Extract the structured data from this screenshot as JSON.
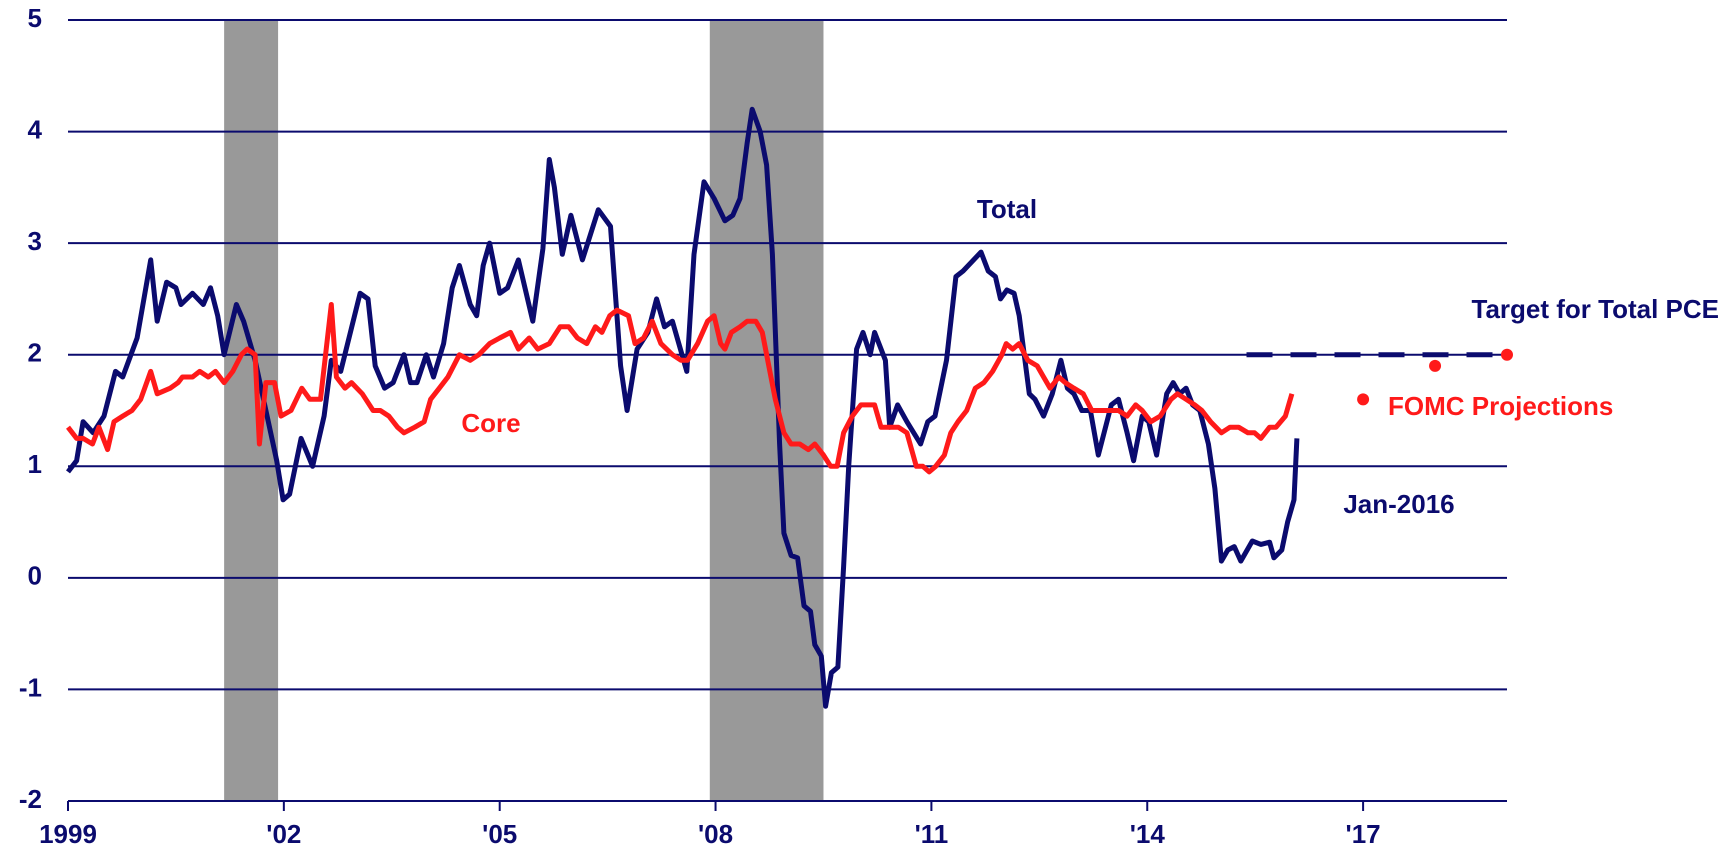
{
  "chart_data": {
    "type": "line",
    "xlim": [
      1999,
      2019
    ],
    "xticks": [
      1999,
      {
        "value": 2002,
        "label": "'02"
      },
      {
        "value": 2005,
        "label": "'05"
      },
      {
        "value": 2008,
        "label": "'08"
      },
      {
        "value": 2011,
        "label": "'11"
      },
      {
        "value": 2014,
        "label": "'14"
      },
      {
        "value": 2017,
        "label": "'17"
      }
    ],
    "ylim": [
      -2,
      5
    ],
    "yticks": [
      -2,
      -1,
      0,
      1,
      2,
      3,
      4,
      5
    ],
    "grid": true,
    "grid_color": "#0b0b6e",
    "recessions": [
      [
        2001.17,
        2001.92
      ],
      [
        2007.92,
        2009.5
      ]
    ],
    "recession_color": "#999999",
    "annotation": "Jan-2016",
    "series": [
      {
        "name": "Total",
        "color": "#0b0b6e",
        "style": "line",
        "x": [
          1999.0,
          1999.12,
          1999.21,
          1999.35,
          1999.5,
          1999.66,
          1999.76,
          1999.96,
          2000.15,
          2000.24,
          2000.37,
          2000.5,
          2000.57,
          2000.73,
          2000.88,
          2000.98,
          2001.08,
          2001.17,
          2001.34,
          2001.44,
          2001.6,
          2001.75,
          2001.9,
          2001.99,
          2002.08,
          2002.24,
          2002.4,
          2002.56,
          2002.66,
          2002.79,
          2003.06,
          2003.17,
          2003.27,
          2003.4,
          2003.52,
          2003.67,
          2003.76,
          2003.85,
          2003.98,
          2004.08,
          2004.22,
          2004.34,
          2004.44,
          2004.59,
          2004.68,
          2004.77,
          2004.86,
          2005.0,
          2005.11,
          2005.26,
          2005.46,
          2005.6,
          2005.69,
          2005.76,
          2005.87,
          2005.99,
          2006.15,
          2006.37,
          2006.54,
          2006.68,
          2006.77,
          2006.91,
          2007.06,
          2007.18,
          2007.29,
          2007.4,
          2007.6,
          2007.7,
          2007.84,
          2007.98,
          2008.13,
          2008.24,
          2008.34,
          2008.44,
          2008.51,
          2008.62,
          2008.71,
          2008.79,
          2008.89,
          2008.95,
          2009.05,
          2009.14,
          2009.23,
          2009.32,
          2009.38,
          2009.47,
          2009.53,
          2009.61,
          2009.7,
          2009.78,
          2009.85,
          2009.96,
          2010.05,
          2010.15,
          2010.21,
          2010.36,
          2010.42,
          2010.53,
          2010.66,
          2010.85,
          2010.95,
          2011.05,
          2011.21,
          2011.34,
          2011.44,
          2011.69,
          2011.79,
          2011.89,
          2011.96,
          2012.05,
          2012.15,
          2012.22,
          2012.36,
          2012.44,
          2012.56,
          2012.68,
          2012.8,
          2012.89,
          2012.98,
          2013.09,
          2013.21,
          2013.32,
          2013.5,
          2013.6,
          2013.72,
          2013.81,
          2013.93,
          2014.02,
          2014.13,
          2014.27,
          2014.36,
          2014.45,
          2014.54,
          2014.63,
          2014.73,
          2014.85,
          2014.94,
          2015.03,
          2015.12,
          2015.21,
          2015.3,
          2015.46,
          2015.58,
          2015.7,
          2015.76,
          2015.87,
          2015.95,
          2016.04,
          2016.08
        ],
        "values": [
          0.95,
          1.05,
          1.4,
          1.3,
          1.45,
          1.85,
          1.8,
          2.15,
          2.85,
          2.3,
          2.65,
          2.6,
          2.45,
          2.55,
          2.45,
          2.6,
          2.35,
          2.0,
          2.45,
          2.3,
          1.95,
          1.5,
          1.05,
          0.7,
          0.75,
          1.25,
          1.0,
          1.45,
          1.95,
          1.85,
          2.55,
          2.5,
          1.9,
          1.7,
          1.75,
          2.0,
          1.75,
          1.75,
          2.0,
          1.8,
          2.1,
          2.6,
          2.8,
          2.45,
          2.35,
          2.8,
          3.0,
          2.55,
          2.6,
          2.85,
          2.3,
          2.95,
          3.75,
          3.5,
          2.9,
          3.25,
          2.85,
          3.3,
          3.15,
          1.9,
          1.5,
          2.05,
          2.2,
          2.5,
          2.25,
          2.3,
          1.85,
          2.9,
          3.55,
          3.4,
          3.2,
          3.25,
          3.4,
          3.9,
          4.2,
          4.0,
          3.7,
          2.9,
          1.2,
          0.4,
          0.2,
          0.18,
          -0.25,
          -0.3,
          -0.6,
          -0.7,
          -1.15,
          -0.85,
          -0.8,
          0.1,
          1.0,
          2.05,
          2.2,
          2.0,
          2.2,
          1.95,
          1.35,
          1.55,
          1.4,
          1.2,
          1.4,
          1.45,
          1.95,
          2.7,
          2.75,
          2.92,
          2.75,
          2.7,
          2.5,
          2.58,
          2.55,
          2.35,
          1.65,
          1.6,
          1.45,
          1.65,
          1.95,
          1.7,
          1.65,
          1.5,
          1.5,
          1.1,
          1.55,
          1.6,
          1.3,
          1.05,
          1.45,
          1.4,
          1.1,
          1.65,
          1.75,
          1.65,
          1.7,
          1.55,
          1.5,
          1.2,
          0.8,
          0.15,
          0.25,
          0.28,
          0.15,
          0.33,
          0.3,
          0.32,
          0.18,
          0.25,
          0.5,
          0.7,
          1.25
        ]
      },
      {
        "name": "Core",
        "color": "#ff1a1a",
        "style": "line",
        "x": [
          1999.0,
          1999.12,
          1999.21,
          1999.34,
          1999.43,
          1999.55,
          1999.64,
          1999.76,
          1999.89,
          2000.01,
          2000.15,
          2000.24,
          2000.42,
          2000.53,
          2000.59,
          2000.73,
          2000.83,
          2000.95,
          2001.05,
          2001.17,
          2001.29,
          2001.41,
          2001.49,
          2001.6,
          2001.66,
          2001.75,
          2001.87,
          2001.96,
          2002.1,
          2002.25,
          2002.36,
          2002.51,
          2002.66,
          2002.73,
          2002.85,
          2002.94,
          2003.09,
          2003.24,
          2003.34,
          2003.46,
          2003.58,
          2003.67,
          2003.82,
          2003.95,
          2004.04,
          2004.16,
          2004.28,
          2004.44,
          2004.59,
          2004.71,
          2004.86,
          2005.0,
          2005.15,
          2005.26,
          2005.41,
          2005.53,
          2005.69,
          2005.84,
          2005.96,
          2006.08,
          2006.21,
          2006.33,
          2006.42,
          2006.53,
          2006.63,
          2006.79,
          2006.88,
          2007.0,
          2007.12,
          2007.24,
          2007.4,
          2007.52,
          2007.61,
          2007.75,
          2007.89,
          2007.98,
          2008.07,
          2008.13,
          2008.22,
          2008.34,
          2008.44,
          2008.56,
          2008.65,
          2008.74,
          2008.83,
          2008.95,
          2009.05,
          2009.17,
          2009.29,
          2009.38,
          2009.5,
          2009.6,
          2009.69,
          2009.78,
          2009.9,
          2010.02,
          2010.11,
          2010.21,
          2010.3,
          2010.42,
          2010.54,
          2010.66,
          2010.79,
          2010.88,
          2010.97,
          2011.06,
          2011.18,
          2011.27,
          2011.37,
          2011.49,
          2011.61,
          2011.73,
          2011.85,
          2011.98,
          2012.04,
          2012.13,
          2012.22,
          2012.34,
          2012.47,
          2012.56,
          2012.65,
          2012.77,
          2012.86,
          2012.98,
          2013.11,
          2013.23,
          2013.35,
          2013.47,
          2013.6,
          2013.72,
          2013.84,
          2013.93,
          2014.05,
          2014.18,
          2014.33,
          2014.42,
          2014.54,
          2014.66,
          2014.76,
          2014.88,
          2015.03,
          2015.15,
          2015.27,
          2015.4,
          2015.49,
          2015.58,
          2015.7,
          2015.79,
          2015.92,
          2016.01
        ],
        "values": [
          1.35,
          1.25,
          1.25,
          1.2,
          1.35,
          1.15,
          1.4,
          1.45,
          1.5,
          1.6,
          1.85,
          1.65,
          1.7,
          1.75,
          1.8,
          1.8,
          1.85,
          1.8,
          1.85,
          1.75,
          1.85,
          2.0,
          2.05,
          2.0,
          1.2,
          1.75,
          1.75,
          1.45,
          1.5,
          1.7,
          1.6,
          1.6,
          2.45,
          1.8,
          1.7,
          1.75,
          1.65,
          1.5,
          1.5,
          1.45,
          1.35,
          1.3,
          1.35,
          1.4,
          1.6,
          1.7,
          1.8,
          2.0,
          1.95,
          2.0,
          2.1,
          2.15,
          2.2,
          2.05,
          2.15,
          2.05,
          2.1,
          2.25,
          2.25,
          2.15,
          2.1,
          2.25,
          2.2,
          2.35,
          2.4,
          2.35,
          2.1,
          2.15,
          2.3,
          2.1,
          2.0,
          1.95,
          1.95,
          2.1,
          2.3,
          2.35,
          2.1,
          2.05,
          2.2,
          2.25,
          2.3,
          2.3,
          2.2,
          1.9,
          1.6,
          1.3,
          1.2,
          1.2,
          1.15,
          1.2,
          1.1,
          1.0,
          1.0,
          1.3,
          1.45,
          1.55,
          1.55,
          1.55,
          1.35,
          1.35,
          1.35,
          1.3,
          1.0,
          1.0,
          0.95,
          1.0,
          1.1,
          1.3,
          1.4,
          1.5,
          1.7,
          1.75,
          1.85,
          2.0,
          2.1,
          2.05,
          2.1,
          1.95,
          1.9,
          1.8,
          1.7,
          1.8,
          1.75,
          1.7,
          1.65,
          1.5,
          1.5,
          1.5,
          1.5,
          1.45,
          1.55,
          1.5,
          1.4,
          1.45,
          1.6,
          1.65,
          1.6,
          1.55,
          1.5,
          1.4,
          1.3,
          1.35,
          1.35,
          1.3,
          1.3,
          1.25,
          1.35,
          1.35,
          1.45,
          1.65
        ]
      },
      {
        "name": "Target for Total PCE",
        "color": "#0b0b6e",
        "style": "dashed",
        "x": [
          2015.38,
          2019
        ],
        "values": [
          2,
          2
        ]
      },
      {
        "name": "FOMC Projections",
        "color": "#ff1a1a",
        "style": "dots",
        "x": [
          2017,
          2018,
          2019
        ],
        "values": [
          1.6,
          1.9,
          2.0
        ]
      }
    ]
  }
}
